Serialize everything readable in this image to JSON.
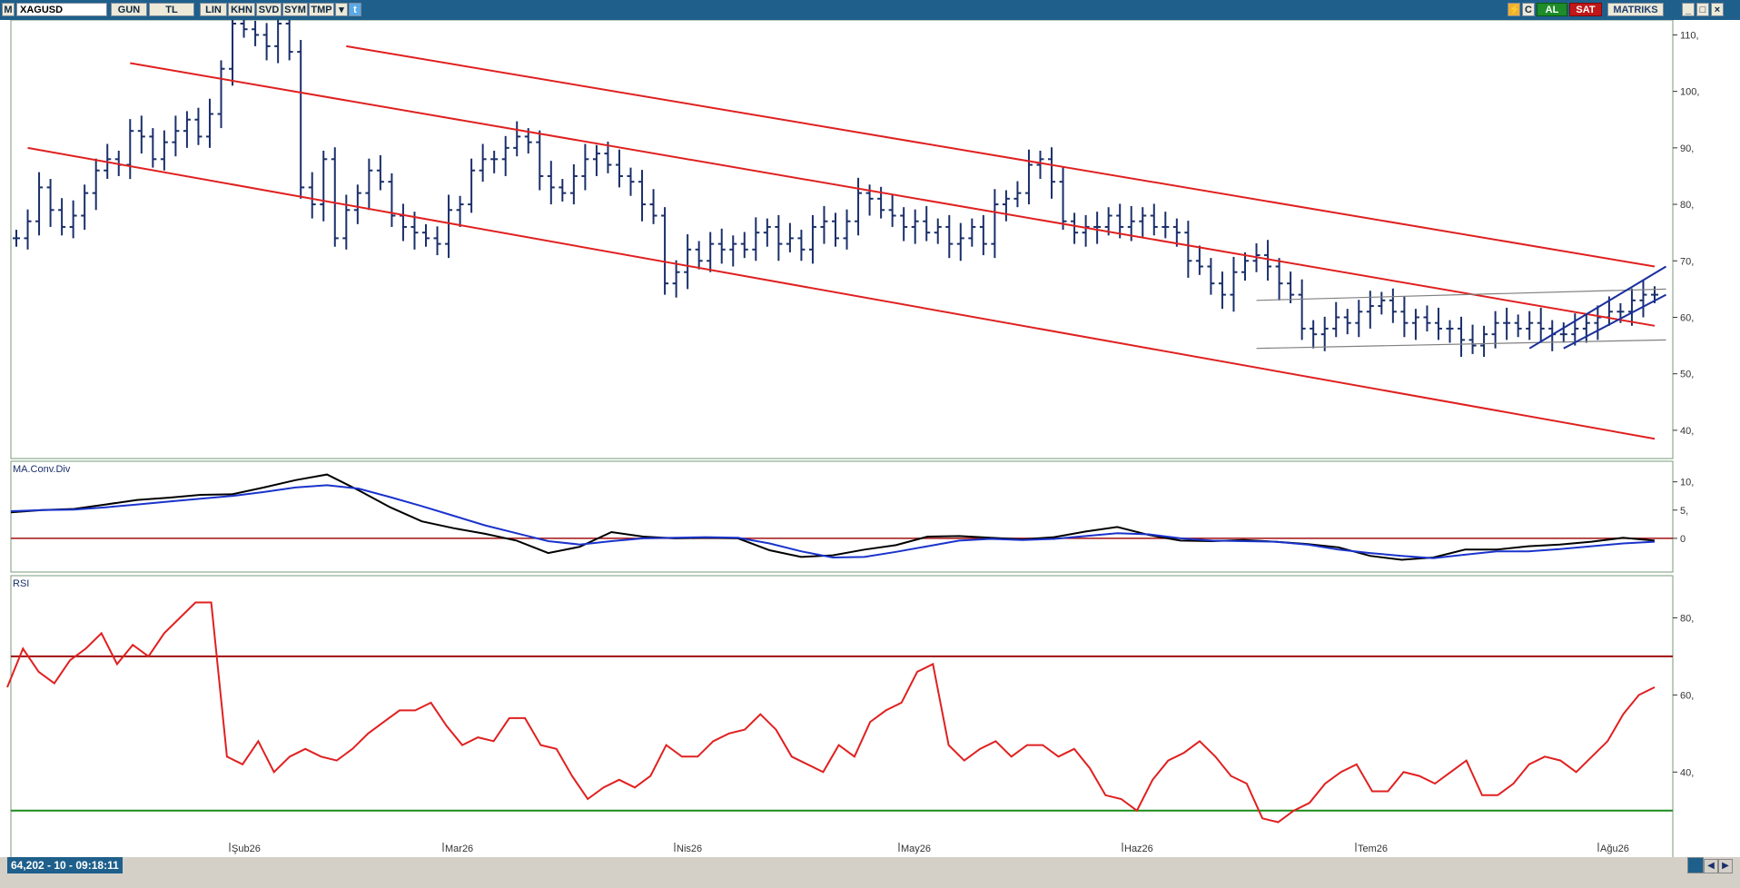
{
  "toolbar": {
    "m_label": "M",
    "symbol": "XAGUSD",
    "period": "GUN",
    "currency": "TL",
    "scale": "LIN",
    "buttons": [
      "KHN",
      "SVD",
      "SYM",
      "TMP"
    ],
    "buy_label": "AL",
    "sell_label": "SAT",
    "brand": "MATRIKS",
    "colors": {
      "bar": "#1f5f8b",
      "buy": "#1e8c2a",
      "sell": "#c01818"
    }
  },
  "status": {
    "readout": "64,202 - 10 - 09:18:11"
  },
  "price_panel": {
    "y_ticks": [
      "110,",
      "100,",
      "90,",
      "80,",
      "70,",
      "60,",
      "50,",
      "40,"
    ],
    "colors": {
      "bars": "#1a2f6b",
      "channel": "#e02020",
      "range": "#808080",
      "wedge": "#1a2f9b"
    }
  },
  "macd_panel": {
    "title": "MA.Conv.Div",
    "y_ticks": [
      "10,",
      "5,",
      "0"
    ],
    "colors": {
      "macd": "#000000",
      "signal": "#1a33cc",
      "zero": "#a01010"
    }
  },
  "rsi_panel": {
    "title": "RSI",
    "y_ticks": [
      "80,",
      "60,",
      "40,"
    ],
    "colors": {
      "rsi": "#e02020",
      "upper": "#a01010",
      "lower": "#1a8a1a"
    }
  },
  "x_axis": {
    "labels": [
      "Şub26",
      "Mar26",
      "Nis26",
      "May26",
      "Haz26",
      "Tem26",
      "Ağu26"
    ]
  },
  "chart_data": [
    {
      "type": "ohlc",
      "symbol": "XAGUSD",
      "ylim": [
        35,
        112
      ],
      "y_ticks": [
        110,
        100,
        90,
        80,
        70,
        60,
        50,
        40
      ],
      "x_labels": [
        "Şub26",
        "Mar26",
        "Nis26",
        "May26",
        "Haz26",
        "Tem26",
        "Ağu26"
      ],
      "close": [
        74,
        77,
        83,
        79,
        76,
        78,
        82,
        86,
        88,
        87,
        93,
        92,
        88,
        91,
        93,
        95,
        92,
        96,
        104,
        112,
        111,
        110,
        108,
        112,
        107,
        83,
        80,
        88,
        74,
        79,
        82,
        86,
        84,
        78,
        76,
        75,
        74,
        73,
        79,
        80,
        86,
        88,
        88,
        90,
        92,
        91,
        85,
        83,
        82,
        85,
        88,
        89,
        87,
        85,
        84,
        80,
        78,
        66,
        68,
        72,
        70,
        73,
        72,
        73,
        72,
        75,
        76,
        73,
        74,
        72,
        76,
        77,
        74,
        77,
        82,
        81,
        79,
        78,
        76,
        77,
        75,
        76,
        73,
        74,
        76,
        73,
        80,
        81,
        82,
        87,
        88,
        84,
        77,
        75,
        76,
        76,
        78,
        76,
        77,
        78,
        76,
        76,
        75,
        70,
        69,
        66,
        64,
        68,
        70,
        71,
        69,
        66,
        64,
        58,
        57,
        58,
        60,
        59,
        61,
        62,
        63,
        61,
        59,
        60,
        59,
        58,
        58,
        56,
        55,
        57,
        59,
        59,
        58,
        59,
        58,
        57,
        57,
        58,
        59,
        60,
        61,
        61,
        63,
        64,
        64
      ],
      "trendlines": {
        "channel_upper": [
          [
            10,
            105
          ],
          [
            144,
            58.5
          ]
        ],
        "channel_mid": [
          [
            1,
            90
          ],
          [
            144,
            38.5
          ]
        ],
        "channel_top": [
          [
            29,
            108
          ],
          [
            144,
            69
          ]
        ],
        "range_upper": [
          [
            109,
            63
          ],
          [
            145,
            65
          ]
        ],
        "range_lower": [
          [
            109,
            54.5
          ],
          [
            145,
            56
          ]
        ],
        "wedge_upper": [
          [
            133,
            54.5
          ],
          [
            145,
            69
          ]
        ],
        "wedge_lower": [
          [
            136,
            54.5
          ],
          [
            145,
            64
          ]
        ]
      }
    },
    {
      "type": "line",
      "title": "MA.Conv.Div",
      "ylim": [
        -5,
        13
      ],
      "y_ticks": [
        10,
        5,
        0
      ],
      "series": [
        {
          "name": "MACD",
          "values": [
            4.6,
            5,
            5.2,
            6,
            6.8,
            7.2,
            7.7,
            7.8,
            9,
            10.3,
            11.3,
            8.5,
            5.5,
            3,
            1.8,
            0.8,
            -0.4,
            -2.6,
            -1.5,
            1.1,
            0.3,
            0,
            0.1,
            0,
            -2.1,
            -3.3,
            -3,
            -2,
            -1.2,
            0.3,
            0.4,
            0.1,
            -0.2,
            0.2,
            1.2,
            2,
            0.6,
            -0.4,
            -0.5,
            -0.3,
            -0.6,
            -1,
            -1.6,
            -3.1,
            -3.8,
            -3.4,
            -2,
            -2,
            -1.4,
            -1.1,
            -0.6,
            0.1,
            -0.4
          ]
        },
        {
          "name": "Signal",
          "values": [
            4.8,
            5,
            5.1,
            5.5,
            6,
            6.5,
            7,
            7.5,
            8.2,
            9,
            9.4,
            8.8,
            7.3,
            5.7,
            4,
            2.3,
            0.9,
            -0.5,
            -1.1,
            -0.5,
            0,
            0.1,
            0.2,
            0.1,
            -0.9,
            -2.3,
            -3.4,
            -3.3,
            -2.4,
            -1.4,
            -0.4,
            -0.1,
            -0.3,
            -0.1,
            0.4,
            0.9,
            0.7,
            0,
            -0.4,
            -0.5,
            -0.6,
            -1.1,
            -2,
            -2.6,
            -3.1,
            -3.5,
            -2.9,
            -2.3,
            -2.3,
            -1.9,
            -1.4,
            -0.9,
            -0.6
          ]
        }
      ],
      "reference_line": 0
    },
    {
      "type": "line",
      "title": "RSI",
      "ylim": [
        25,
        90
      ],
      "y_ticks": [
        80,
        60,
        40
      ],
      "series": [
        {
          "name": "RSI",
          "values": [
            62,
            72,
            66,
            63,
            69,
            72,
            76,
            68,
            73,
            70,
            76,
            80,
            84,
            84,
            44,
            42,
            48,
            40,
            44,
            46,
            44,
            43,
            46,
            50,
            53,
            56,
            56,
            58,
            52,
            47,
            49,
            48,
            54,
            54,
            47,
            46,
            39,
            33,
            36,
            38,
            36,
            39,
            47,
            44,
            44,
            48,
            50,
            51,
            55,
            51,
            44,
            42,
            40,
            47,
            44,
            53,
            56,
            58,
            66,
            68,
            47,
            43,
            46,
            48,
            44,
            47,
            47,
            44,
            46,
            41,
            34,
            33,
            30,
            38,
            43,
            45,
            48,
            44,
            39,
            37,
            28,
            27,
            30,
            32,
            37,
            40,
            42,
            35,
            35,
            40,
            39,
            37,
            40,
            43,
            34,
            34,
            37,
            42,
            44,
            43,
            40,
            44,
            48,
            55,
            60,
            62
          ]
        }
      ],
      "reference_lines": [
        70,
        30
      ]
    }
  ]
}
